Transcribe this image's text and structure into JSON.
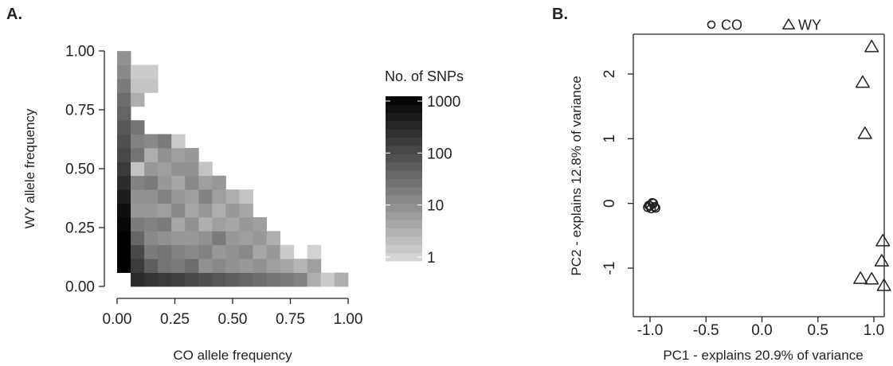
{
  "chart_data": [
    {
      "type": "heatmap",
      "panel_label": "A.",
      "xlabel": "CO allele frequency",
      "ylabel": "WY allele frequency",
      "xlim": [
        0,
        1
      ],
      "ylim": [
        0,
        1
      ],
      "x_ticks": [
        "0.00",
        "0.25",
        "0.50",
        "0.75",
        "1.00"
      ],
      "y_ticks": [
        "0.00",
        "0.25",
        "0.50",
        "0.75",
        "1.00"
      ],
      "bin_width": 0.0588,
      "colorbar": {
        "title": "No. of SNPs",
        "scale": "log",
        "ticks": [
          "1",
          "10",
          "100",
          "1000"
        ],
        "range": [
          1,
          1000
        ],
        "colors": [
          "#d9d9d9",
          "#000000"
        ]
      },
      "counts_log10_by_column": [
        [
          null,
          3.4,
          3.2,
          3.0,
          2.9,
          2.8,
          2.6,
          2.4,
          2.2,
          2.0,
          1.9,
          1.8,
          1.6,
          1.5,
          1.3,
          1.1,
          1.0
        ],
        [
          2.4,
          2.2,
          2.0,
          1.6,
          1.3,
          0.9,
          1.0,
          1.2,
          0.3,
          1.4,
          1.2,
          1.4,
          null,
          0.6,
          0.3,
          0.2,
          null
        ],
        [
          2.3,
          1.7,
          1.3,
          1.1,
          1.2,
          0.9,
          1.0,
          1.3,
          0.9,
          0.6,
          1.1,
          null,
          null,
          null,
          0.3,
          0.2,
          null
        ],
        [
          2.2,
          1.4,
          1.4,
          1.0,
          1.3,
          0.8,
          1.2,
          0.9,
          0.8,
          1.0,
          1.3,
          null,
          null,
          null,
          null,
          null,
          null
        ],
        [
          2.1,
          1.3,
          1.2,
          0.9,
          0.7,
          1.1,
          0.9,
          0.7,
          1.0,
          0.8,
          0.2,
          null,
          null,
          null,
          null,
          null,
          null
        ],
        [
          2.0,
          1.5,
          1.1,
          0.9,
          1.0,
          0.7,
          0.8,
          1.1,
          1.0,
          0.9,
          null,
          null,
          null,
          null,
          null,
          null,
          null
        ],
        [
          1.9,
          1.0,
          1.2,
          1.0,
          0.6,
          0.9,
          1.2,
          0.8,
          0.3,
          null,
          null,
          null,
          null,
          null,
          null,
          null,
          null
        ],
        [
          1.8,
          1.1,
          0.9,
          1.3,
          0.8,
          0.6,
          0.8,
          0.9,
          null,
          null,
          null,
          null,
          null,
          null,
          null,
          null,
          null
        ],
        [
          1.7,
          1.0,
          1.0,
          0.9,
          0.7,
          0.9,
          0.6,
          null,
          null,
          null,
          null,
          null,
          null,
          null,
          null,
          null,
          null
        ],
        [
          1.6,
          0.9,
          1.1,
          0.8,
          0.9,
          0.7,
          0.3,
          null,
          null,
          null,
          null,
          null,
          null,
          null,
          null,
          null,
          null
        ],
        [
          1.5,
          1.0,
          0.7,
          0.9,
          0.8,
          null,
          null,
          null,
          null,
          null,
          null,
          null,
          null,
          null,
          null,
          null,
          null
        ],
        [
          1.4,
          0.8,
          0.9,
          0.6,
          null,
          null,
          null,
          null,
          null,
          null,
          null,
          null,
          null,
          null,
          null,
          null,
          null
        ],
        [
          1.3,
          0.7,
          0.2,
          null,
          null,
          null,
          null,
          null,
          null,
          null,
          null,
          null,
          null,
          null,
          null,
          null,
          null
        ],
        [
          1.2,
          0.5,
          null,
          null,
          null,
          null,
          null,
          null,
          null,
          null,
          null,
          null,
          null,
          null,
          null,
          null,
          null
        ],
        [
          0.6,
          0.8,
          0.1,
          null,
          null,
          null,
          null,
          null,
          null,
          null,
          null,
          null,
          null,
          null,
          null,
          null,
          null
        ],
        [
          0.2,
          null,
          null,
          null,
          null,
          null,
          null,
          null,
          null,
          null,
          null,
          null,
          null,
          null,
          null,
          null,
          null
        ],
        [
          0.6,
          null,
          null,
          null,
          null,
          null,
          null,
          null,
          null,
          null,
          null,
          null,
          null,
          null,
          null,
          null,
          null
        ]
      ]
    },
    {
      "type": "scatter",
      "panel_label": "B.",
      "xlabel": "PC1 - explains 20.9% of variance",
      "ylabel": "PC2 - explains 12.8% of variance",
      "xlim": [
        -1.2,
        1.2
      ],
      "ylim": [
        -1.4,
        2.6
      ],
      "x_ticks": [
        "-1.0",
        "-0.5",
        "0.0",
        "0.5",
        "1.0"
      ],
      "y_ticks": [
        "-1",
        "0",
        "1",
        "2"
      ],
      "legend_position": "top",
      "series": [
        {
          "name": "CO",
          "marker": "circle",
          "x": [
            -1.0,
            -0.98,
            -0.96,
            -1.02,
            -0.99,
            -0.97,
            -0.95,
            -1.01
          ],
          "y": [
            -0.04,
            0.01,
            -0.05,
            -0.06,
            -0.08,
            0.0,
            -0.07,
            -0.03
          ]
        },
        {
          "name": "WY",
          "marker": "triangle",
          "x": [
            0.98,
            0.9,
            0.92,
            1.08,
            1.07,
            0.88,
            0.98,
            1.09
          ],
          "y": [
            2.42,
            1.87,
            1.08,
            -0.58,
            -0.89,
            -1.16,
            -1.17,
            -1.27
          ]
        }
      ]
    }
  ]
}
